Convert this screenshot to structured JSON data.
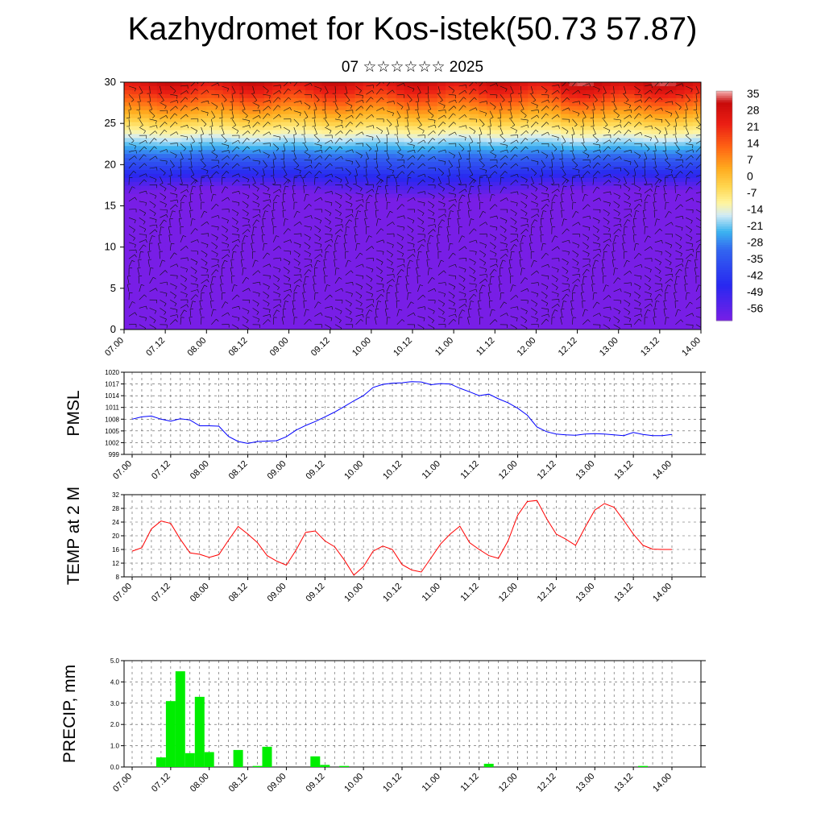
{
  "title": "Kazhydromet for Kos-istek(50.73 57.87)",
  "subtitle": "07 ☆☆☆☆☆☆ 2025",
  "colorbar": {
    "labels": [
      "35",
      "28",
      "21",
      "14",
      "7",
      "0",
      "-7",
      "-14",
      "-21",
      "-28",
      "-35",
      "-42",
      "-49",
      "-56"
    ]
  },
  "chart_data": [
    {
      "type": "heatmap",
      "title": "",
      "xlabel": "",
      "ylabel": "",
      "x_ticks": [
        "07.00",
        "07.12",
        "08.00",
        "08.12",
        "09.00",
        "09.12",
        "10.00",
        "10.12",
        "11.00",
        "11.12",
        "12.00",
        "12.12",
        "13.00",
        "13.12",
        "14.00"
      ],
      "y_ticks": [
        "0",
        "5",
        "10",
        "15",
        "20",
        "25",
        "30"
      ],
      "ylim": [
        0,
        30
      ],
      "value_range": [
        -60,
        38
      ],
      "colorbar_ticks": [
        35,
        28,
        21,
        14,
        7,
        0,
        -7,
        -14,
        -21,
        -28,
        -35,
        -42,
        -49,
        -56
      ],
      "overlay": "wind barbs"
    },
    {
      "type": "line",
      "ylabel": "PMSL",
      "ylim": [
        999,
        1020
      ],
      "y_ticks": [
        "1020",
        "1017",
        "1014",
        "1011",
        "1008",
        "1005",
        "1002",
        "999"
      ],
      "x_ticks": [
        "07.00",
        "07.12",
        "08.00",
        "08.12",
        "09.00",
        "09.12",
        "10.00",
        "10.12",
        "11.00",
        "11.12",
        "12.00",
        "12.12",
        "13.00",
        "13.12",
        "14.00"
      ],
      "series": [
        {
          "color": "#0000ff",
          "x": [
            0,
            0.125,
            0.25,
            0.375,
            0.5,
            0.625,
            0.75,
            0.875,
            1,
            1.125,
            1.25,
            1.375,
            1.5,
            1.625,
            1.75,
            1.875,
            2,
            2.125,
            2.25,
            2.375,
            2.5,
            2.625,
            2.75,
            2.875,
            3,
            3.125,
            3.25,
            3.375,
            3.5,
            3.625,
            3.75,
            3.875,
            4,
            4.125,
            4.25,
            4.375,
            4.5,
            4.625,
            4.75,
            4.875,
            5,
            5.125,
            5.25,
            5.375,
            5.5,
            5.625,
            5.75,
            5.875,
            6,
            6.125,
            6.25,
            6.375,
            6.5,
            6.625,
            6.75,
            6.875,
            7
          ],
          "values": [
            1008.0,
            1008.6,
            1008.8,
            1008.0,
            1007.5,
            1008.1,
            1007.8,
            1006.3,
            1006.3,
            1006.2,
            1003.6,
            1002.3,
            1001.8,
            1002.3,
            1002.4,
            1002.5,
            1003.5,
            1005.2,
            1006.4,
            1007.4,
            1008.6,
            1009.8,
            1011.2,
            1012.7,
            1014.0,
            1016.1,
            1016.9,
            1017.2,
            1017.3,
            1017.6,
            1017.5,
            1016.8,
            1017.1,
            1017.0,
            1015.9,
            1015.0,
            1014.0,
            1014.4,
            1013.2,
            1012.2,
            1010.8,
            1009.0,
            1006.0,
            1004.8,
            1004.2,
            1004.0,
            1003.9,
            1004.2,
            1004.3,
            1004.2,
            1004.0,
            1003.8,
            1004.6,
            1004.1,
            1003.8,
            1003.8,
            1004.1
          ]
        }
      ]
    },
    {
      "type": "line",
      "ylabel": "TEMP at 2 M",
      "ylim": [
        8,
        32
      ],
      "y_ticks": [
        "32",
        "28",
        "24",
        "20",
        "16",
        "12",
        "8"
      ],
      "x_ticks": [
        "07.00",
        "07.12",
        "08.00",
        "08.12",
        "09.00",
        "09.12",
        "10.00",
        "10.12",
        "11.00",
        "11.12",
        "12.00",
        "12.12",
        "13.00",
        "13.12",
        "14.00"
      ],
      "series": [
        {
          "color": "#ff0000",
          "x": [
            0,
            0.125,
            0.25,
            0.375,
            0.5,
            0.625,
            0.75,
            0.875,
            1,
            1.125,
            1.25,
            1.375,
            1.5,
            1.625,
            1.75,
            1.875,
            2,
            2.125,
            2.25,
            2.375,
            2.5,
            2.625,
            2.75,
            2.875,
            3,
            3.125,
            3.25,
            3.375,
            3.5,
            3.625,
            3.75,
            3.875,
            4,
            4.125,
            4.25,
            4.375,
            4.5,
            4.625,
            4.75,
            4.875,
            5,
            5.125,
            5.25,
            5.375,
            5.5,
            5.625,
            5.75,
            5.875,
            6,
            6.125,
            6.25,
            6.375,
            6.5,
            6.625,
            6.75,
            6.875,
            7
          ],
          "values": [
            15.5,
            16.5,
            22.0,
            24.3,
            23.6,
            19.0,
            15.0,
            14.6,
            13.7,
            14.5,
            18.7,
            22.7,
            20.5,
            18.0,
            14.2,
            12.6,
            11.4,
            15.8,
            21.0,
            21.4,
            18.5,
            16.8,
            13.0,
            8.5,
            11.0,
            15.5,
            17.0,
            16.0,
            11.6,
            10.0,
            9.4,
            13.5,
            17.6,
            20.5,
            22.8,
            18.0,
            16.0,
            14.2,
            13.4,
            18.5,
            26.0,
            30.0,
            30.3,
            25.0,
            20.5,
            19.0,
            17.2,
            22.5,
            27.5,
            29.4,
            28.3,
            24.5,
            20.5,
            17.2,
            16.1,
            16.0,
            16.0
          ]
        }
      ]
    },
    {
      "type": "bar",
      "ylabel": "PRECIP, mm",
      "ylim": [
        0,
        5
      ],
      "y_ticks": [
        "5.0",
        "4.0",
        "3.0",
        "2.0",
        "1.0",
        "0.0"
      ],
      "x_ticks": [
        "07.00",
        "07.12",
        "08.00",
        "08.12",
        "09.00",
        "09.12",
        "10.00",
        "10.12",
        "11.00",
        "11.12",
        "12.00",
        "12.12",
        "13.00",
        "13.12",
        "14.00"
      ],
      "series": [
        {
          "color": "#00ee00",
          "x": [
            0.375,
            0.5,
            0.625,
            0.75,
            0.875,
            1.0,
            1.375,
            1.625,
            1.75,
            2.375,
            2.5,
            2.75,
            4.625,
            6.625
          ],
          "values": [
            0.45,
            3.1,
            4.5,
            0.65,
            3.3,
            0.7,
            0.8,
            0.05,
            0.95,
            0.5,
            0.1,
            0.05,
            0.15,
            0.05
          ]
        }
      ]
    }
  ]
}
